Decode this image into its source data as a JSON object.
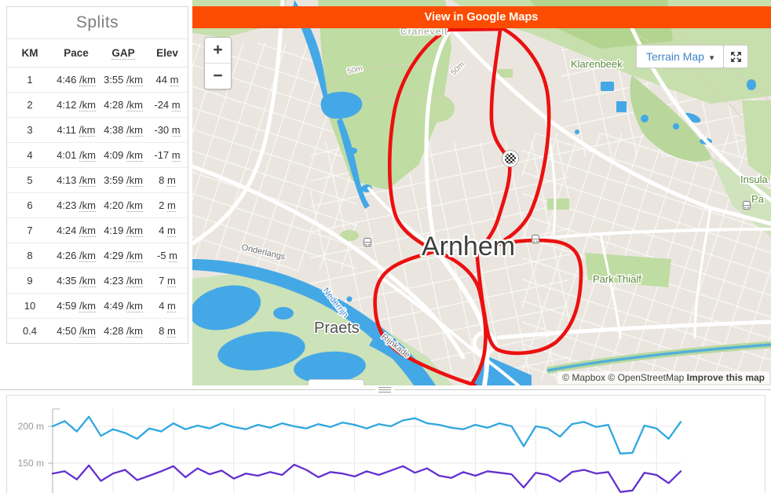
{
  "splits": {
    "title": "Splits",
    "columns": [
      "KM",
      "Pace",
      "GAP",
      "Elev"
    ],
    "pace_unit": "/km",
    "gap_unit": "/km",
    "elev_unit": "m",
    "rows": [
      {
        "km": "1",
        "pace": "4:46",
        "gap": "3:55",
        "elev": "44"
      },
      {
        "km": "2",
        "pace": "4:12",
        "gap": "4:28",
        "elev": "-24"
      },
      {
        "km": "3",
        "pace": "4:11",
        "gap": "4:38",
        "elev": "-30"
      },
      {
        "km": "4",
        "pace": "4:01",
        "gap": "4:09",
        "elev": "-17"
      },
      {
        "km": "5",
        "pace": "4:13",
        "gap": "3:59",
        "elev": "8"
      },
      {
        "km": "6",
        "pace": "4:23",
        "gap": "4:20",
        "elev": "2"
      },
      {
        "km": "7",
        "pace": "4:24",
        "gap": "4:19",
        "elev": "4"
      },
      {
        "km": "8",
        "pace": "4:26",
        "gap": "4:29",
        "elev": "-5"
      },
      {
        "km": "9",
        "pace": "4:35",
        "gap": "4:23",
        "elev": "7"
      },
      {
        "km": "10",
        "pace": "4:59",
        "gap": "4:49",
        "elev": "4"
      },
      {
        "km": "0.4",
        "pace": "4:50",
        "gap": "4:28",
        "elev": "8"
      }
    ]
  },
  "map": {
    "banner_label": "View in Google Maps",
    "banner_color": "#FC4C02",
    "zoom_in": "+",
    "zoom_out": "−",
    "style_button": "Terrain Map",
    "attribution": "© Mapbox © OpenStreetMap",
    "attribution_improve": "Improve this map",
    "route_color": "#ec1010",
    "labels": {
      "city": "Arnhem",
      "cranevelt": "Cranevelt",
      "klarenbeek": "Klarenbeek",
      "insula": "Insula De",
      "park_thialf": "Park Thialf",
      "pa": "Pa",
      "onderlangs": "Onderlangs",
      "nederrijn": "Nederrijn",
      "praets": "Praets",
      "rijnkade": "Rijnkade",
      "contour_a": "50m",
      "contour_b": "50m"
    }
  },
  "chart_data": {
    "type": "line",
    "x_unit": "km",
    "x_range": [
      0,
      10.4
    ],
    "x_step": 0.2,
    "y_unit": "m",
    "grid": true,
    "y_ticks": [
      {
        "label": "200 m",
        "value": 200
      },
      {
        "label": "150 m",
        "value": 150
      }
    ],
    "series": [
      {
        "name": "elevation-blue",
        "color": "#2fa7df",
        "values": [
          200,
          207,
          193,
          213,
          187,
          196,
          191,
          183,
          197,
          193,
          204,
          196,
          201,
          197,
          204,
          199,
          196,
          202,
          198,
          204,
          200,
          197,
          203,
          199,
          205,
          202,
          197,
          203,
          200,
          208,
          211,
          204,
          202,
          198,
          196,
          202,
          198,
          204,
          200,
          173,
          200,
          197,
          186,
          203,
          206,
          199,
          202,
          163,
          164,
          201,
          197,
          183,
          206
        ]
      },
      {
        "name": "elevation-purple",
        "color": "#6430cf",
        "values": [
          136,
          139,
          128,
          147,
          126,
          136,
          141,
          127,
          133,
          139,
          146,
          131,
          143,
          135,
          140,
          129,
          136,
          133,
          138,
          134,
          148,
          141,
          131,
          138,
          136,
          132,
          139,
          134,
          140,
          146,
          137,
          143,
          133,
          130,
          138,
          133,
          139,
          137,
          135,
          117,
          137,
          134,
          125,
          138,
          141,
          136,
          138,
          111,
          113,
          137,
          134,
          123,
          139
        ]
      }
    ]
  }
}
